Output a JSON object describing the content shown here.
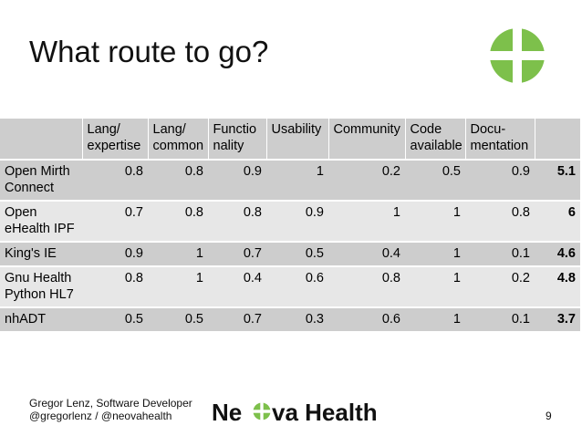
{
  "slide": {
    "title": "What route to go?",
    "page_number": "9"
  },
  "colors": {
    "brand_green": "#7dc04b",
    "header_row": "#cdcdcd",
    "alt_row": "#e7e7e7"
  },
  "table": {
    "headers": [
      {
        "line1": "",
        "line2": ""
      },
      {
        "line1": "Lang/",
        "line2": "expertise"
      },
      {
        "line1": "Lang/",
        "line2": "common"
      },
      {
        "line1": "Functio",
        "line2": "nality"
      },
      {
        "line1": "Usability",
        "line2": ""
      },
      {
        "line1": "Community",
        "line2": ""
      },
      {
        "line1": "Code",
        "line2": "available"
      },
      {
        "line1": "Docu-",
        "line2": "mentation"
      },
      {
        "line1": "",
        "line2": ""
      }
    ],
    "rows": [
      {
        "name1": "Open Mirth",
        "name2": "Connect",
        "values": [
          "0.8",
          "0.8",
          "0.9",
          "1",
          "0.2",
          "0.5",
          "0.9"
        ],
        "total": "5.1"
      },
      {
        "name1": "Open",
        "name2": "eHealth IPF",
        "values": [
          "0.7",
          "0.8",
          "0.8",
          "0.9",
          "1",
          "1",
          "0.8"
        ],
        "total": "6"
      },
      {
        "name1": "King's IE",
        "name2": "",
        "values": [
          "0.9",
          "1",
          "0.7",
          "0.5",
          "0.4",
          "1",
          "0.1"
        ],
        "total": "4.6"
      },
      {
        "name1": "Gnu Health",
        "name2": "Python HL7",
        "values": [
          "0.8",
          "1",
          "0.4",
          "0.6",
          "0.8",
          "1",
          "0.2"
        ],
        "total": "4.8"
      },
      {
        "name1": "nhADT",
        "name2": "",
        "values": [
          "0.5",
          "0.5",
          "0.7",
          "0.3",
          "0.6",
          "1",
          "0.1"
        ],
        "total": "3.7"
      }
    ]
  },
  "footer": {
    "author": "Gregor Lenz, Software Developer",
    "handles": "@gregorlenz / @neovahealth",
    "brand_part1": "Ne",
    "brand_part2": "va Health"
  },
  "icons": {
    "top_logo": "neova-cross-logo-icon",
    "brand_o": "neova-cross-o-icon"
  }
}
